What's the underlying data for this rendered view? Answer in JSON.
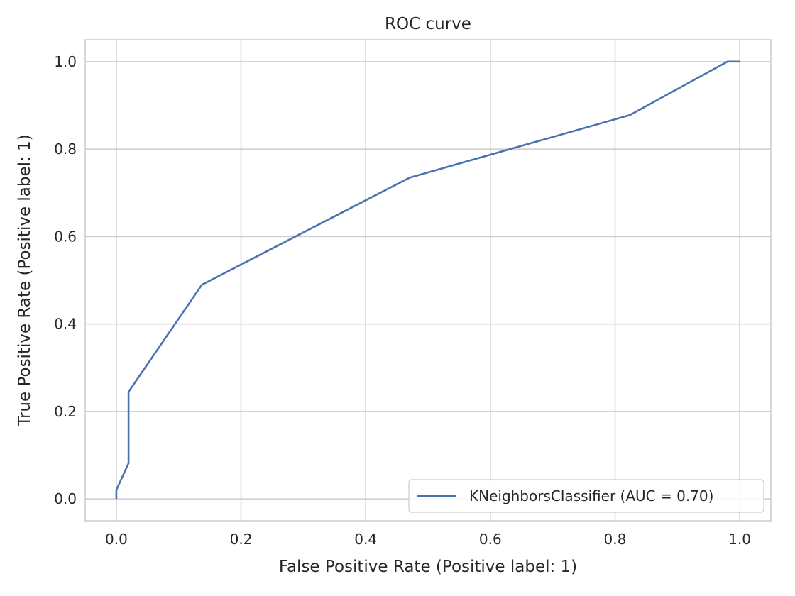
{
  "chart_data": {
    "type": "line",
    "title": "ROC curve",
    "xlabel": "False Positive Rate (Positive label: 1)",
    "ylabel": "True Positive Rate (Positive label: 1)",
    "xlim": [
      -0.05,
      1.05
    ],
    "ylim": [
      -0.05,
      1.05
    ],
    "xticks": [
      0.0,
      0.2,
      0.4,
      0.6,
      0.8,
      1.0
    ],
    "yticks": [
      0.0,
      0.2,
      0.4,
      0.6,
      0.8,
      1.0
    ],
    "xtick_labels": [
      "0.0",
      "0.2",
      "0.4",
      "0.6",
      "0.8",
      "1.0"
    ],
    "ytick_labels": [
      "0.0",
      "0.2",
      "0.4",
      "0.6",
      "0.8",
      "1.0"
    ],
    "grid": true,
    "legend_position": "lower-right",
    "series": [
      {
        "name": "KNeighborsClassifier (AUC = 0.70)",
        "color": "#4c72b0",
        "x": [
          0.0,
          0.0,
          0.0196,
          0.0196,
          0.1373,
          0.4706,
          0.8235,
          0.9804,
          1.0
        ],
        "y": [
          0.0,
          0.0204,
          0.0816,
          0.2449,
          0.4898,
          0.7347,
          0.8776,
          1.0,
          1.0
        ]
      }
    ]
  }
}
